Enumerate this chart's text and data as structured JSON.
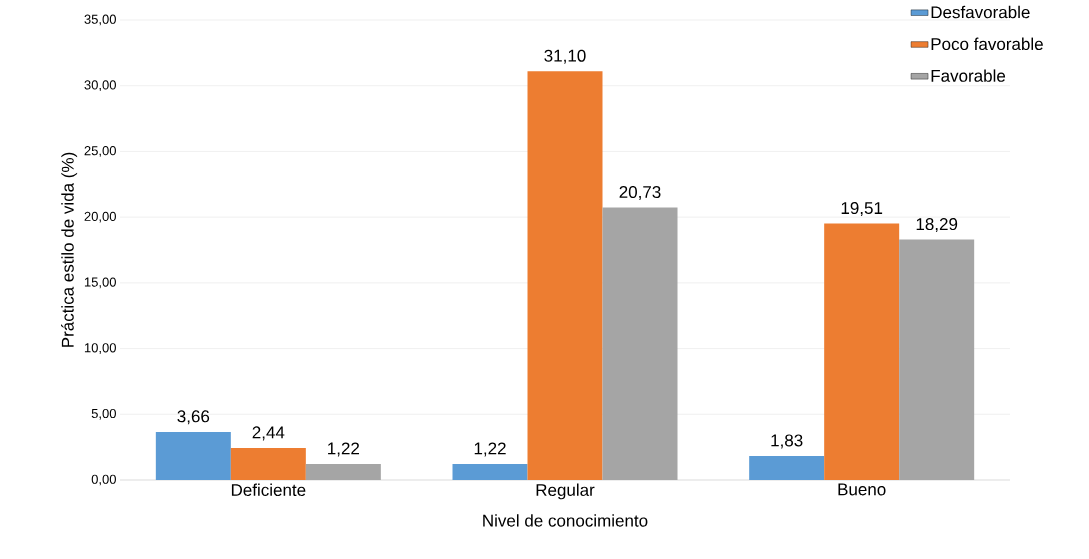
{
  "chart_data": {
    "type": "bar",
    "xlabel": "Nivel de conocimiento",
    "ylabel": "Práctica estilo de vida (%)",
    "categories": [
      "Deficiente",
      "Regular",
      "Bueno"
    ],
    "series": [
      {
        "name": "Desfavorable",
        "color": "#5b9bd5",
        "values": [
          3.66,
          1.22,
          1.83
        ],
        "value_labels": [
          "3,66",
          "1,22",
          "1,83"
        ]
      },
      {
        "name": "Poco favorable",
        "color": "#ed7d31",
        "values": [
          2.44,
          31.1,
          19.51
        ],
        "value_labels": [
          "2,44",
          "31,10",
          "19,51"
        ]
      },
      {
        "name": "Favorable",
        "color": "#a5a5a5",
        "values": [
          1.22,
          20.73,
          18.29
        ],
        "value_labels": [
          "1,22",
          "20,73",
          "18,29"
        ]
      }
    ],
    "ylim": [
      0,
      35
    ],
    "yticks": [
      {
        "value": 0,
        "label": "0,00"
      },
      {
        "value": 5,
        "label": "5,00"
      },
      {
        "value": 10,
        "label": "10,00"
      },
      {
        "value": 15,
        "label": "15,00"
      },
      {
        "value": 20,
        "label": "20,00"
      },
      {
        "value": 25,
        "label": "25,00"
      },
      {
        "value": 30,
        "label": "30,00"
      },
      {
        "value": 35,
        "label": "35,00"
      }
    ],
    "grid": "y",
    "legend": "top right"
  }
}
